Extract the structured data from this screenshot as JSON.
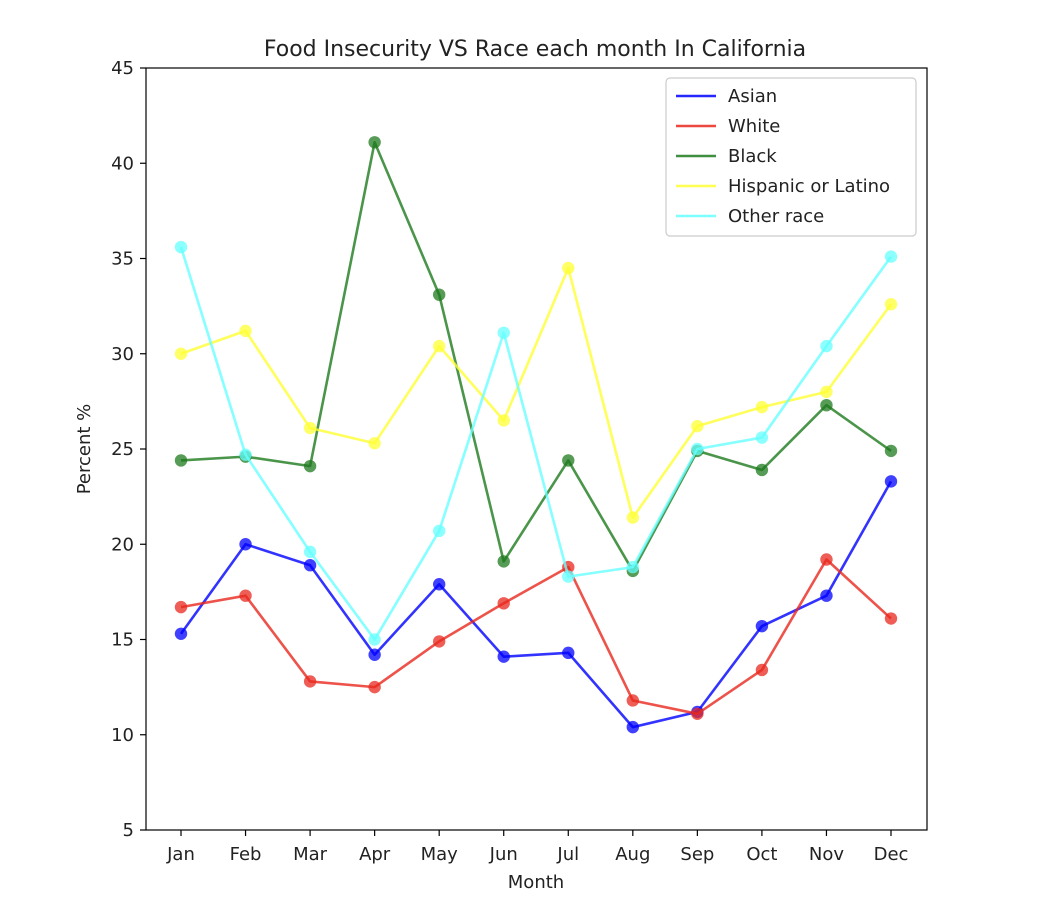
{
  "chart_data": {
    "type": "line",
    "title": "Food Insecurity VS Race each month In California",
    "xlabel": "Month",
    "ylabel": "Percent %",
    "categories": [
      "Jan",
      "Feb",
      "Mar",
      "Apr",
      "May",
      "Jun",
      "Jul",
      "Aug",
      "Sep",
      "Oct",
      "Nov",
      "Dec"
    ],
    "ylim": [
      5,
      45
    ],
    "yticks": [
      5,
      10,
      15,
      20,
      25,
      30,
      35,
      40,
      45
    ],
    "grid": false,
    "legend_position": "top-right",
    "series": [
      {
        "name": "Asian",
        "color": "#0000ff",
        "values": [
          15.3,
          20.0,
          18.9,
          14.2,
          17.9,
          14.1,
          14.3,
          10.4,
          11.2,
          15.7,
          17.3,
          23.3
        ]
      },
      {
        "name": "White",
        "color": "#e8281d",
        "values": [
          16.7,
          17.3,
          12.8,
          12.5,
          14.9,
          16.9,
          18.8,
          11.8,
          11.1,
          13.4,
          19.2,
          16.1
        ]
      },
      {
        "name": "Black",
        "color": "#1e7a1e",
        "values": [
          24.4,
          24.6,
          24.1,
          41.1,
          33.1,
          19.1,
          24.4,
          18.6,
          24.9,
          23.9,
          27.3,
          24.9
        ]
      },
      {
        "name": "Hispanic or Latino",
        "color": "#ffff33",
        "values": [
          30.0,
          31.2,
          26.1,
          25.3,
          30.4,
          26.5,
          34.5,
          21.4,
          26.2,
          27.2,
          28.0,
          32.6
        ]
      },
      {
        "name": "Other race",
        "color": "#66ffff",
        "values": [
          35.6,
          24.7,
          19.6,
          15.0,
          20.7,
          31.1,
          18.3,
          18.8,
          25.0,
          25.6,
          30.4,
          35.1
        ]
      }
    ]
  }
}
